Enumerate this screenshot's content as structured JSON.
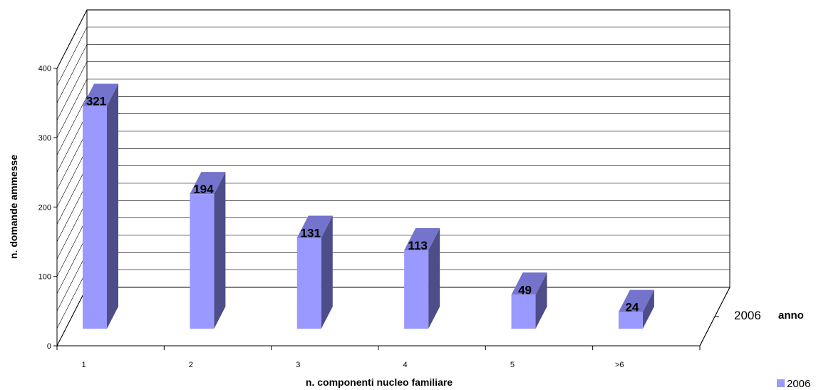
{
  "chart_data": {
    "type": "bar",
    "categories": [
      "1",
      "2",
      "3",
      "4",
      "5",
      ">6"
    ],
    "series": [
      {
        "name": "2006",
        "values": [
          321,
          194,
          131,
          113,
          49,
          24
        ]
      }
    ],
    "xlabel": "n. componenti nucleo familiare",
    "ylabel": "n. domande ammesse",
    "depth_label": "anno",
    "depth_categories": [
      "2006"
    ],
    "ylim": [
      0,
      400
    ],
    "yticks": [
      0,
      100,
      200,
      300,
      400
    ],
    "grid": true,
    "legend": "bottom-right",
    "colors": {
      "front": "#9999ff",
      "top": "#7474cc",
      "side": "#4d4d8a",
      "legend": "#9999ff"
    }
  }
}
